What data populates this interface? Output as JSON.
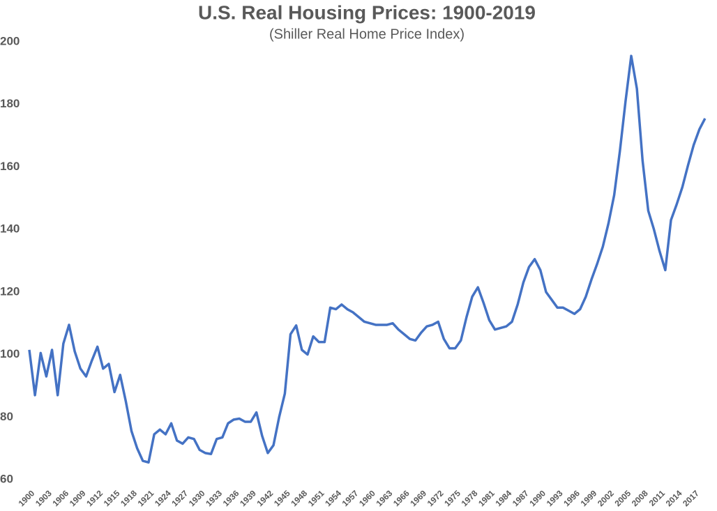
{
  "chart_data": {
    "type": "line",
    "title": "U.S. Real Housing Prices: 1900-2019",
    "subtitle": "(Shiller Real Home Price Index)",
    "x": [
      1900,
      1901,
      1902,
      1903,
      1904,
      1905,
      1906,
      1907,
      1908,
      1909,
      1910,
      1911,
      1912,
      1913,
      1914,
      1915,
      1916,
      1917,
      1918,
      1919,
      1920,
      1921,
      1922,
      1923,
      1924,
      1925,
      1926,
      1927,
      1928,
      1929,
      1930,
      1931,
      1932,
      1933,
      1934,
      1935,
      1936,
      1937,
      1938,
      1939,
      1940,
      1941,
      1942,
      1943,
      1944,
      1945,
      1946,
      1947,
      1948,
      1949,
      1950,
      1951,
      1952,
      1953,
      1954,
      1955,
      1956,
      1957,
      1958,
      1959,
      1960,
      1961,
      1962,
      1963,
      1964,
      1965,
      1966,
      1967,
      1968,
      1969,
      1970,
      1971,
      1972,
      1973,
      1974,
      1975,
      1976,
      1977,
      1978,
      1979,
      1980,
      1981,
      1982,
      1983,
      1984,
      1985,
      1986,
      1987,
      1988,
      1989,
      1990,
      1991,
      1992,
      1993,
      1994,
      1995,
      1996,
      1997,
      1998,
      1999,
      2000,
      2001,
      2002,
      2003,
      2004,
      2005,
      2006,
      2007,
      2008,
      2009,
      2010,
      2011,
      2012,
      2013,
      2014,
      2015,
      2016,
      2017,
      2018,
      2019
    ],
    "series": [
      {
        "name": "Real Home Price Index",
        "color": "#4472c4",
        "values": [
          101.5,
          87,
          100.5,
          93,
          101.5,
          87,
          103.5,
          109.5,
          101,
          95.5,
          93,
          98,
          102.5,
          95.5,
          97,
          88,
          93.5,
          85,
          75.5,
          70,
          66,
          65.5,
          74.5,
          76,
          74.5,
          78,
          72.5,
          71.5,
          73.5,
          73,
          69.5,
          68.5,
          68.2,
          73,
          73.5,
          78,
          79.2,
          79.5,
          78.5,
          78.5,
          81.5,
          74,
          68.5,
          71,
          80,
          87.5,
          106.5,
          109.3,
          101.5,
          100,
          105.8,
          104,
          104,
          115,
          114.5,
          116,
          114.5,
          113.5,
          112,
          110.5,
          110,
          109.5,
          109.5,
          109.5,
          110,
          108,
          106.5,
          105,
          104.5,
          107,
          109,
          109.5,
          110.5,
          105,
          102,
          102,
          104.5,
          112,
          118.5,
          121.5,
          116.5,
          111,
          108,
          108.5,
          109,
          110.5,
          116,
          123,
          128,
          130.5,
          127,
          120,
          117.5,
          115,
          115,
          114,
          113,
          114.5,
          118.5,
          124,
          129,
          134.5,
          142,
          151,
          165,
          181,
          195.5,
          185,
          162,
          146,
          140,
          133,
          127,
          143,
          148,
          153.5,
          160.5,
          167,
          172,
          175.5
        ]
      }
    ],
    "xlim": [
      1900,
      2020
    ],
    "xticks": [
      1900,
      1903,
      1906,
      1909,
      1912,
      1915,
      1918,
      1921,
      1924,
      1927,
      1930,
      1933,
      1936,
      1939,
      1942,
      1945,
      1948,
      1951,
      1954,
      1957,
      1960,
      1963,
      1966,
      1969,
      1972,
      1975,
      1978,
      1981,
      1984,
      1987,
      1990,
      1993,
      1996,
      1999,
      2002,
      2005,
      2008,
      2011,
      2014,
      2017
    ],
    "ylim": [
      60,
      200
    ],
    "yticks": [
      60,
      80,
      100,
      120,
      140,
      160,
      180,
      200
    ],
    "grid": false
  }
}
